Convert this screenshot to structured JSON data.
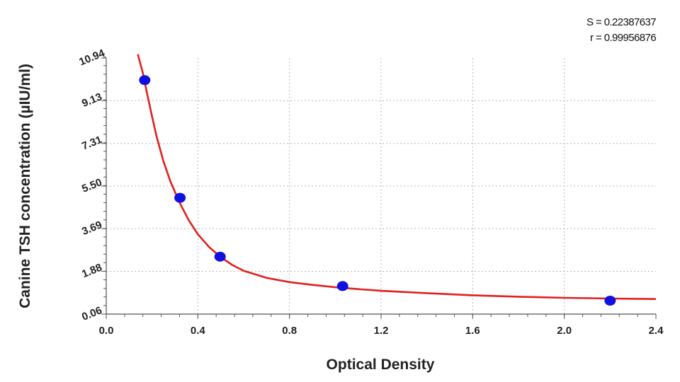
{
  "chart_data": {
    "type": "scatter",
    "title": "",
    "xlabel": "Optical Density",
    "ylabel": "Canine TSH concentration (µIU/ml)",
    "xlim": [
      0.0,
      2.4
    ],
    "ylim": [
      0.06,
      10.94
    ],
    "x_ticks": [
      "0.0",
      "0.4",
      "0.8",
      "1.2",
      "1.6",
      "2.0",
      "2.4"
    ],
    "y_ticks": [
      "0.06",
      "1.88",
      "3.69",
      "5.50",
      "7.31",
      "9.13",
      "10.94"
    ],
    "grid": true,
    "stats": {
      "s_text": "S = 0.22387637",
      "r_text": "r = 0.99956876"
    },
    "points": {
      "x": [
        0.168,
        0.322,
        0.497,
        1.032,
        2.2
      ],
      "y": [
        10.0,
        5.0,
        2.5,
        1.25,
        0.63
      ]
    },
    "fit_curve": {
      "x": [
        0.138,
        0.16,
        0.18,
        0.2,
        0.22,
        0.25,
        0.28,
        0.32,
        0.36,
        0.4,
        0.45,
        0.5,
        0.55,
        0.6,
        0.7,
        0.8,
        0.9,
        1.0,
        1.1,
        1.2,
        1.4,
        1.6,
        1.8,
        2.0,
        2.2,
        2.4
      ],
      "y": [
        11.1,
        10.3,
        9.35,
        8.45,
        7.6,
        6.55,
        5.7,
        4.8,
        4.05,
        3.45,
        2.9,
        2.48,
        2.15,
        1.9,
        1.6,
        1.42,
        1.3,
        1.2,
        1.12,
        1.05,
        0.95,
        0.86,
        0.8,
        0.75,
        0.72,
        0.7
      ]
    },
    "colors": {
      "points": "#1010e0",
      "curve": "#e02020",
      "grid": "#b8b8b8",
      "axis": "#555555"
    }
  }
}
